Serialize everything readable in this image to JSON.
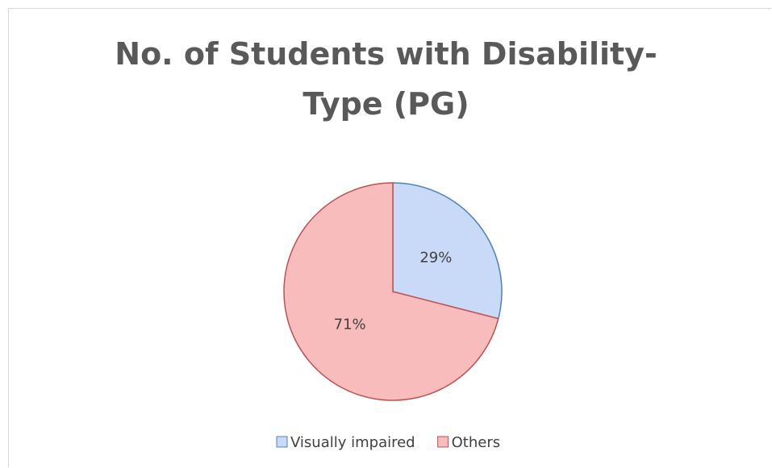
{
  "chart_data": {
    "type": "pie",
    "title": "No. of Students with Disability-Type (PG)",
    "categories": [
      "Visually impaired",
      "Others"
    ],
    "values": [
      29,
      71
    ],
    "value_labels": [
      "29%",
      "71%"
    ],
    "colors": [
      "#c9daf8",
      "#f9bcbc"
    ],
    "edge_colors": [
      "#4f81bd",
      "#c0504d"
    ],
    "legend": "bottom"
  }
}
